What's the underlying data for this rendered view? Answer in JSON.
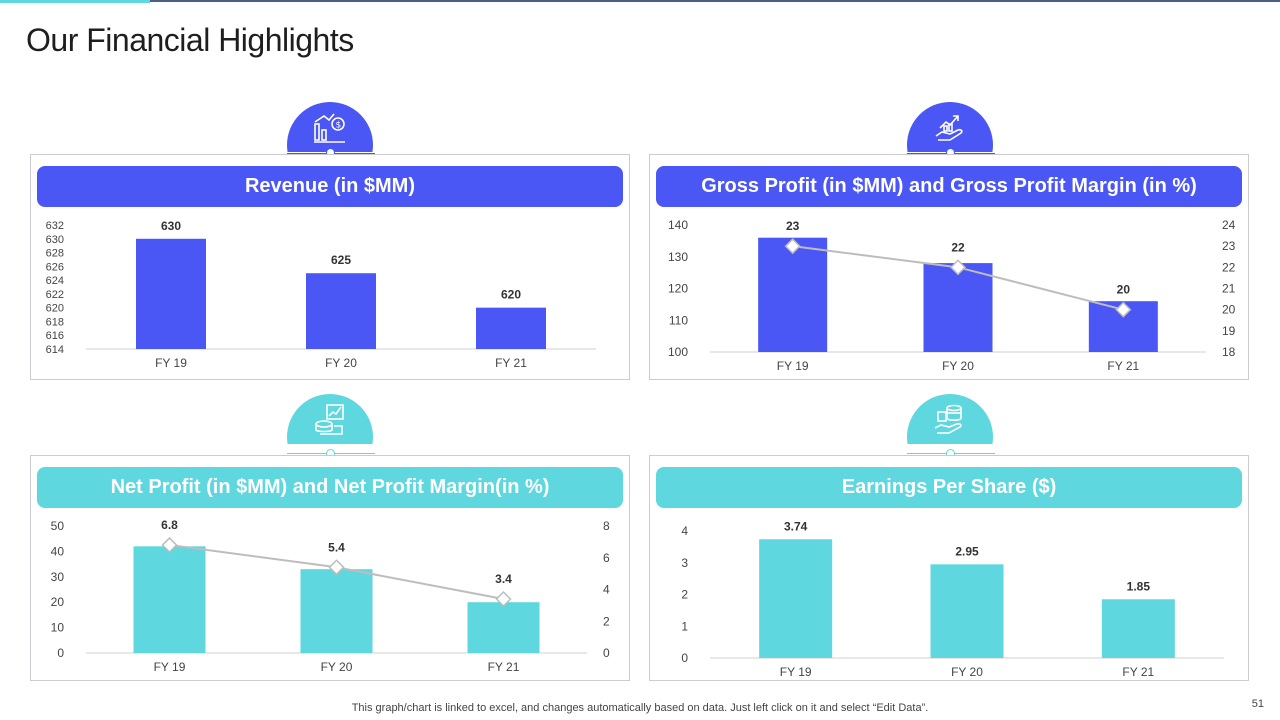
{
  "title": "Our Financial Highlights",
  "footer": "This graph/chart is linked to excel,  and changes automatically based on data. Just left click on it and select “Edit Data”.",
  "page_number": "51",
  "colors": {
    "blue": "#4a57f4",
    "teal": "#5fd7de",
    "line": "#bdbdbd"
  },
  "panels": {
    "revenue": {
      "title": "Revenue (in $MM)",
      "icon": "money-growth-icon"
    },
    "gross": {
      "title": "Gross Profit (in $MM) and Gross Profit Margin (in %)",
      "icon": "hand-growth-icon"
    },
    "net": {
      "title": "Net Profit (in $MM) and Net Profit Margin(in %)",
      "icon": "profit-chart-icon"
    },
    "eps": {
      "title": "Earnings Per Share ($)",
      "icon": "coins-hand-icon"
    }
  },
  "chart_data": [
    {
      "id": "revenue",
      "type": "bar",
      "title": "Revenue (in $MM)",
      "categories": [
        "FY 19",
        "FY 20",
        "FY 21"
      ],
      "values": [
        630,
        625,
        620
      ],
      "data_labels": [
        "630",
        "625",
        "620"
      ],
      "ylim": [
        614,
        632
      ],
      "yticks": [
        614,
        616,
        618,
        620,
        622,
        624,
        626,
        628,
        630,
        632
      ],
      "color": "blue"
    },
    {
      "id": "gross",
      "type": "bar",
      "title": "Gross Profit (in $MM) and Gross Profit Margin (in %)",
      "categories": [
        "FY 19",
        "FY 20",
        "FY 21"
      ],
      "values": [
        136,
        128,
        116
      ],
      "ylim": [
        100,
        140
      ],
      "yticks": [
        100,
        110,
        120,
        130,
        140
      ],
      "line_series": {
        "name": "Gross Profit Margin (in %)",
        "values": [
          23,
          22,
          20
        ],
        "ylim": [
          18,
          24
        ],
        "yticks": [
          18,
          19,
          20,
          21,
          22,
          23,
          24
        ]
      },
      "data_labels": [
        "23",
        "22",
        "20"
      ],
      "color": "blue"
    },
    {
      "id": "net",
      "type": "bar",
      "title": "Net Profit (in $MM) and Net Profit Margin(in %)",
      "categories": [
        "FY 19",
        "FY 20",
        "FY 21"
      ],
      "values": [
        42,
        33,
        20
      ],
      "ylim": [
        0,
        50
      ],
      "yticks": [
        0,
        10,
        20,
        30,
        40,
        50
      ],
      "line_series": {
        "name": "Net Profit Margin(in %)",
        "values": [
          6.8,
          5.4,
          3.4
        ],
        "ylim": [
          0,
          8
        ],
        "yticks": [
          0,
          2,
          4,
          6,
          8
        ]
      },
      "data_labels": [
        "6.8",
        "5.4",
        "3.4"
      ],
      "color": "teal"
    },
    {
      "id": "eps",
      "type": "bar",
      "title": "Earnings Per Share ($)",
      "categories": [
        "FY 19",
        "FY 20",
        "FY 21"
      ],
      "values": [
        3.74,
        2.95,
        1.85
      ],
      "data_labels": [
        "3.74",
        "2.95",
        "1.85"
      ],
      "ylim": [
        0,
        4
      ],
      "yticks": [
        0,
        1,
        2,
        3,
        4
      ],
      "color": "teal"
    }
  ]
}
